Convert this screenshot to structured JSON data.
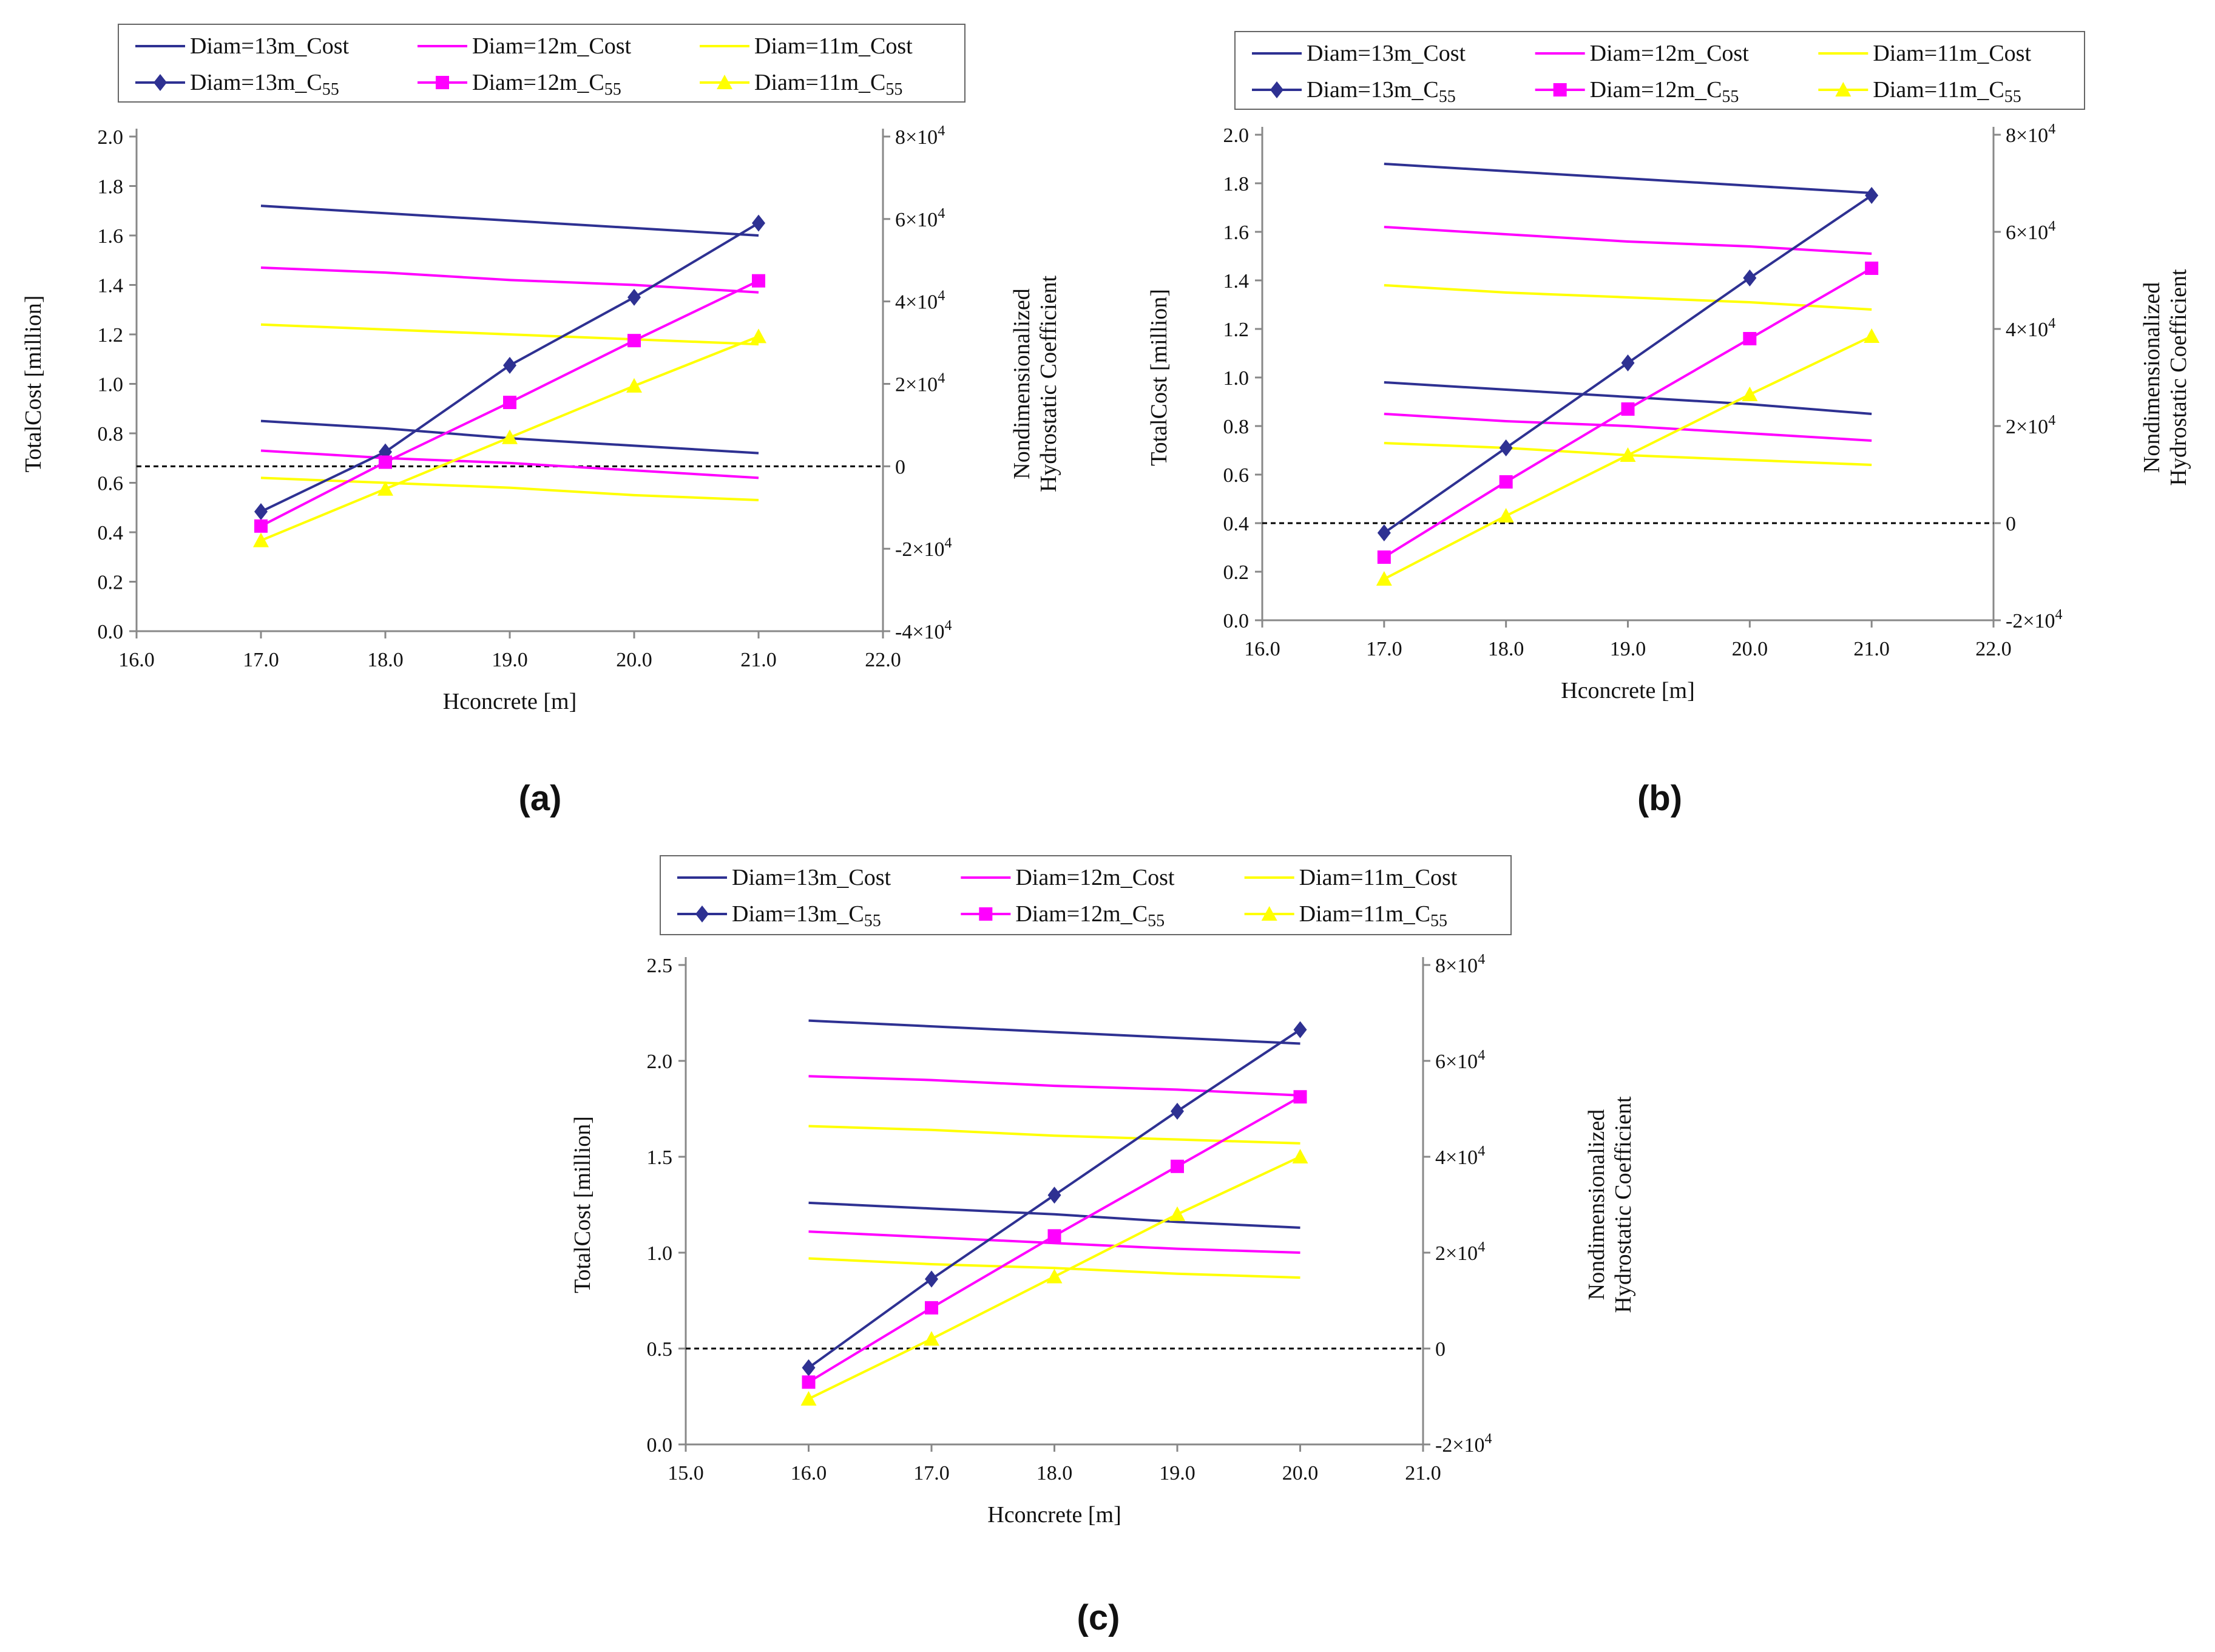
{
  "colors": {
    "Diam=13m": "#2E3192",
    "Diam=12m": "#FF00FF",
    "Diam=11m": "#FFFF00"
  },
  "panel_labels": [
    "(a)",
    "(b)",
    "(c)"
  ],
  "chart_data": [
    {
      "type": "line",
      "panel": "(a)",
      "xlabel": "Hconcrete [m]",
      "ylabel": "TotalCost [million]",
      "y2label_line1": "Nondimensionalized",
      "y2label_line2": "Hydrostatic Coefficient",
      "xlim": [
        16.0,
        22.0
      ],
      "xticks": [
        "16.0",
        "17.0",
        "18.0",
        "19.0",
        "20.0",
        "21.0",
        "22.0"
      ],
      "ylim": [
        0.0,
        2.0
      ],
      "yticks": [
        "0.0",
        "0.2",
        "0.4",
        "0.6",
        "0.8",
        "1.0",
        "1.2",
        "1.4",
        "1.6",
        "1.8",
        "2.0"
      ],
      "y2lim": [
        -40000,
        80000
      ],
      "y2ticks": [
        {
          "value": -40000,
          "label": "-4×10",
          "exp": "4"
        },
        {
          "value": -20000,
          "label": "-2×10",
          "exp": "4"
        },
        {
          "value": 0,
          "label": "0",
          "exp": ""
        },
        {
          "value": 20000,
          "label": "2×10",
          "exp": "4"
        },
        {
          "value": 40000,
          "label": "4×10",
          "exp": "4"
        },
        {
          "value": 60000,
          "label": "6×10",
          "exp": "4"
        },
        {
          "value": 80000,
          "label": "8×10",
          "exp": "4"
        }
      ],
      "reference_line": {
        "axis": "y2",
        "value": 0
      },
      "series": [
        {
          "name": "Diam=13m_Cost",
          "axis": "y",
          "marker": "none",
          "color_key": "Diam=13m",
          "x": [
            17,
            18,
            19,
            20,
            21
          ],
          "values": [
            1.72,
            1.69,
            1.66,
            1.63,
            1.6
          ]
        },
        {
          "name": "Diam=13m_Cost",
          "axis": "y",
          "marker": "none",
          "color_key": "Diam=13m",
          "legend": false,
          "x": [
            17,
            18,
            19,
            20,
            21
          ],
          "values": [
            0.85,
            0.82,
            0.78,
            0.75,
            0.72
          ]
        },
        {
          "name": "Diam=12m_Cost",
          "axis": "y",
          "marker": "none",
          "color_key": "Diam=12m",
          "x": [
            17,
            18,
            19,
            20,
            21
          ],
          "values": [
            1.47,
            1.45,
            1.42,
            1.4,
            1.37
          ]
        },
        {
          "name": "Diam=12m_Cost",
          "axis": "y",
          "marker": "none",
          "color_key": "Diam=12m",
          "legend": false,
          "x": [
            17,
            18,
            19,
            20,
            21
          ],
          "values": [
            0.73,
            0.7,
            0.68,
            0.65,
            0.62
          ]
        },
        {
          "name": "Diam=11m_Cost",
          "axis": "y",
          "marker": "none",
          "color_key": "Diam=11m",
          "x": [
            17,
            18,
            19,
            20,
            21
          ],
          "values": [
            1.24,
            1.22,
            1.2,
            1.18,
            1.16
          ]
        },
        {
          "name": "Diam=11m_Cost",
          "axis": "y",
          "marker": "none",
          "color_key": "Diam=11m",
          "legend": false,
          "x": [
            17,
            18,
            19,
            20,
            21
          ],
          "values": [
            0.62,
            0.6,
            0.58,
            0.55,
            0.53
          ]
        },
        {
          "name": "Diam=13m_C55",
          "axis": "y2",
          "marker": "diamond",
          "color_key": "Diam=13m",
          "x": [
            17,
            18,
            19,
            20,
            21
          ],
          "values": [
            -11000,
            3500,
            24500,
            41000,
            59000
          ]
        },
        {
          "name": "Diam=12m_C55",
          "axis": "y2",
          "marker": "square",
          "color_key": "Diam=12m",
          "x": [
            17,
            18,
            19,
            20,
            21
          ],
          "values": [
            -14500,
            1000,
            15500,
            30500,
            45000
          ]
        },
        {
          "name": "Diam=11m_C55",
          "axis": "y2",
          "marker": "triangle",
          "color_key": "Diam=11m",
          "x": [
            17,
            18,
            19,
            20,
            21
          ],
          "values": [
            -18000,
            -5500,
            7000,
            19500,
            31500
          ]
        }
      ]
    },
    {
      "type": "line",
      "panel": "(b)",
      "xlabel": "Hconcrete [m]",
      "ylabel": "TotalCost [million]",
      "y2label_line1": "Nondimensionalized",
      "y2label_line2": "Hydrostatic Coefficient",
      "xlim": [
        16.0,
        22.0
      ],
      "xticks": [
        "16.0",
        "17.0",
        "18.0",
        "19.0",
        "20.0",
        "21.0",
        "22.0"
      ],
      "ylim": [
        0.0,
        2.0
      ],
      "yticks": [
        "0.0",
        "0.2",
        "0.4",
        "0.6",
        "0.8",
        "1.0",
        "1.2",
        "1.4",
        "1.6",
        "1.8",
        "2.0"
      ],
      "y2lim": [
        -20000,
        80000
      ],
      "y2ticks": [
        {
          "value": -20000,
          "label": "-2×10",
          "exp": "4"
        },
        {
          "value": 0,
          "label": "0",
          "exp": ""
        },
        {
          "value": 20000,
          "label": "2×10",
          "exp": "4"
        },
        {
          "value": 40000,
          "label": "4×10",
          "exp": "4"
        },
        {
          "value": 60000,
          "label": "6×10",
          "exp": "4"
        },
        {
          "value": 80000,
          "label": "8×10",
          "exp": "4"
        }
      ],
      "reference_line": {
        "axis": "y2",
        "value": 0
      },
      "series": [
        {
          "name": "Diam=13m_Cost",
          "axis": "y",
          "marker": "none",
          "color_key": "Diam=13m",
          "x": [
            17,
            18,
            19,
            20,
            21
          ],
          "values": [
            1.88,
            1.85,
            1.82,
            1.79,
            1.76
          ]
        },
        {
          "name": "Diam=13m_Cost",
          "axis": "y",
          "marker": "none",
          "color_key": "Diam=13m",
          "legend": false,
          "x": [
            17,
            18,
            19,
            20,
            21
          ],
          "values": [
            0.98,
            0.95,
            0.92,
            0.89,
            0.85
          ]
        },
        {
          "name": "Diam=12m_Cost",
          "axis": "y",
          "marker": "none",
          "color_key": "Diam=12m",
          "x": [
            17,
            18,
            19,
            20,
            21
          ],
          "values": [
            1.62,
            1.59,
            1.56,
            1.54,
            1.51
          ]
        },
        {
          "name": "Diam=12m_Cost",
          "axis": "y",
          "marker": "none",
          "color_key": "Diam=12m",
          "legend": false,
          "x": [
            17,
            18,
            19,
            20,
            21
          ],
          "values": [
            0.85,
            0.82,
            0.8,
            0.77,
            0.74
          ]
        },
        {
          "name": "Diam=11m_Cost",
          "axis": "y",
          "marker": "none",
          "color_key": "Diam=11m",
          "x": [
            17,
            18,
            19,
            20,
            21
          ],
          "values": [
            1.38,
            1.35,
            1.33,
            1.31,
            1.28
          ]
        },
        {
          "name": "Diam=11m_Cost",
          "axis": "y",
          "marker": "none",
          "color_key": "Diam=11m",
          "legend": false,
          "x": [
            17,
            18,
            19,
            20,
            21
          ],
          "values": [
            0.73,
            0.71,
            0.68,
            0.66,
            0.64
          ]
        },
        {
          "name": "Diam=13m_C55",
          "axis": "y2",
          "marker": "diamond",
          "color_key": "Diam=13m",
          "x": [
            17,
            18,
            19,
            20,
            21
          ],
          "values": [
            -2000,
            15500,
            33000,
            50500,
            67500
          ]
        },
        {
          "name": "Diam=12m_C55",
          "axis": "y2",
          "marker": "square",
          "color_key": "Diam=12m",
          "x": [
            17,
            18,
            19,
            20,
            21
          ],
          "values": [
            -7000,
            8500,
            23500,
            38000,
            52500
          ]
        },
        {
          "name": "Diam=11m_C55",
          "axis": "y2",
          "marker": "triangle",
          "color_key": "Diam=11m",
          "x": [
            17,
            18,
            19,
            20,
            21
          ],
          "values": [
            -11500,
            1500,
            14000,
            26500,
            38500
          ]
        }
      ]
    },
    {
      "type": "line",
      "panel": "(c)",
      "xlabel": "Hconcrete [m]",
      "ylabel": "TotalCost [million]",
      "y2label_line1": "Nondimensionalized",
      "y2label_line2": "Hydrostatic Coefficient",
      "xlim": [
        15.0,
        21.0
      ],
      "xticks": [
        "15.0",
        "16.0",
        "17.0",
        "18.0",
        "19.0",
        "20.0",
        "21.0"
      ],
      "ylim": [
        0.0,
        2.5
      ],
      "yticks": [
        "0.0",
        "0.5",
        "1.0",
        "1.5",
        "2.0",
        "2.5"
      ],
      "y2lim": [
        -20000,
        80000
      ],
      "y2ticks": [
        {
          "value": -20000,
          "label": "-2×10",
          "exp": "4"
        },
        {
          "value": 0,
          "label": "0",
          "exp": ""
        },
        {
          "value": 20000,
          "label": "2×10",
          "exp": "4"
        },
        {
          "value": 40000,
          "label": "4×10",
          "exp": "4"
        },
        {
          "value": 60000,
          "label": "6×10",
          "exp": "4"
        },
        {
          "value": 80000,
          "label": "8×10",
          "exp": "4"
        }
      ],
      "reference_line": {
        "axis": "y2",
        "value": 0
      },
      "series": [
        {
          "name": "Diam=13m_Cost",
          "axis": "y",
          "marker": "none",
          "color_key": "Diam=13m",
          "x": [
            16,
            17,
            18,
            19,
            20
          ],
          "values": [
            2.21,
            2.18,
            2.15,
            2.12,
            2.09
          ]
        },
        {
          "name": "Diam=13m_Cost",
          "axis": "y",
          "marker": "none",
          "color_key": "Diam=13m",
          "legend": false,
          "x": [
            16,
            17,
            18,
            19,
            20
          ],
          "values": [
            1.26,
            1.23,
            1.2,
            1.16,
            1.13
          ]
        },
        {
          "name": "Diam=12m_Cost",
          "axis": "y",
          "marker": "none",
          "color_key": "Diam=12m",
          "x": [
            16,
            17,
            18,
            19,
            20
          ],
          "values": [
            1.92,
            1.9,
            1.87,
            1.85,
            1.82
          ]
        },
        {
          "name": "Diam=12m_Cost",
          "axis": "y",
          "marker": "none",
          "color_key": "Diam=12m",
          "legend": false,
          "x": [
            16,
            17,
            18,
            19,
            20
          ],
          "values": [
            1.11,
            1.08,
            1.05,
            1.02,
            1.0
          ]
        },
        {
          "name": "Diam=11m_Cost",
          "axis": "y",
          "marker": "none",
          "color_key": "Diam=11m",
          "x": [
            16,
            17,
            18,
            19,
            20
          ],
          "values": [
            1.66,
            1.64,
            1.61,
            1.59,
            1.57
          ]
        },
        {
          "name": "Diam=11m_Cost",
          "axis": "y",
          "marker": "none",
          "color_key": "Diam=11m",
          "legend": false,
          "x": [
            16,
            17,
            18,
            19,
            20
          ],
          "values": [
            0.97,
            0.94,
            0.92,
            0.89,
            0.87
          ]
        },
        {
          "name": "Diam=13m_C55",
          "axis": "y2",
          "marker": "diamond",
          "color_key": "Diam=13m",
          "x": [
            16,
            17,
            18,
            19,
            20
          ],
          "values": [
            -4000,
            14500,
            32000,
            49500,
            66500
          ]
        },
        {
          "name": "Diam=12m_C55",
          "axis": "y2",
          "marker": "square",
          "color_key": "Diam=12m",
          "x": [
            16,
            17,
            18,
            19,
            20
          ],
          "values": [
            -7000,
            8500,
            23500,
            38000,
            52500
          ]
        },
        {
          "name": "Diam=11m_C55",
          "axis": "y2",
          "marker": "triangle",
          "color_key": "Diam=11m",
          "x": [
            16,
            17,
            18,
            19,
            20
          ],
          "values": [
            -10500,
            2000,
            15000,
            28000,
            40000
          ]
        }
      ]
    }
  ]
}
